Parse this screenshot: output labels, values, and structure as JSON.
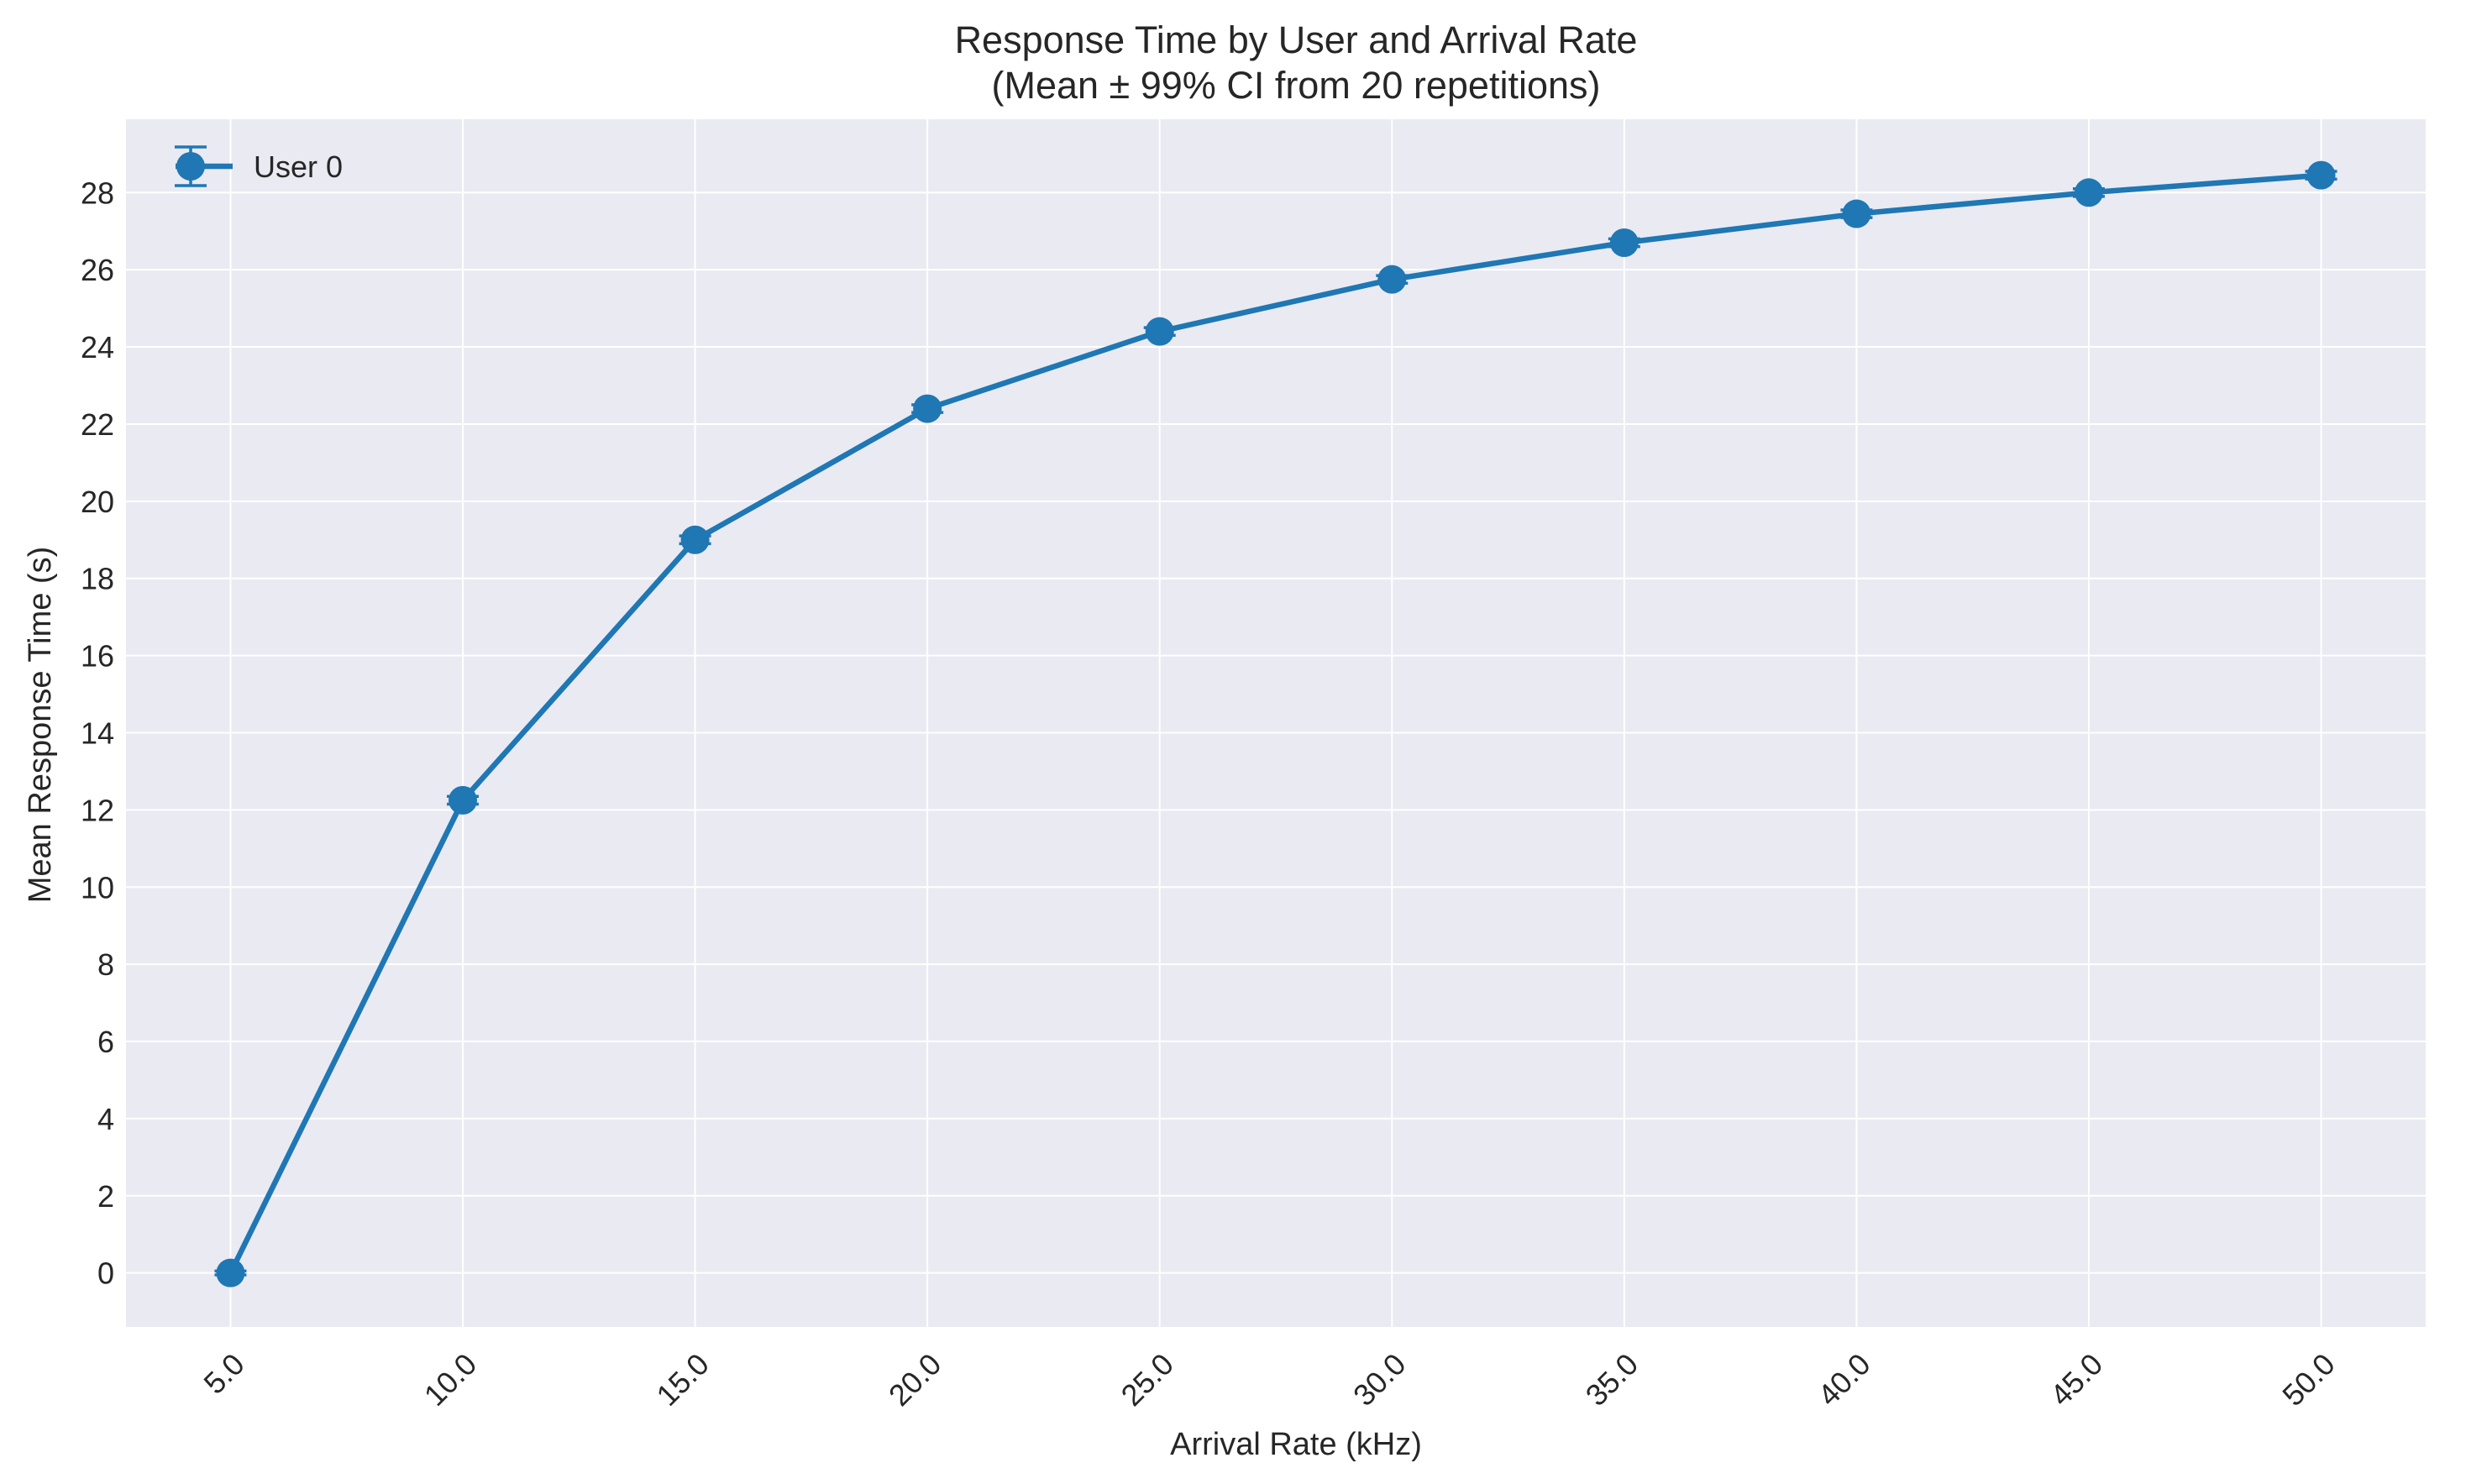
{
  "chart_data": {
    "type": "line",
    "title": "Response Time by User and Arrival Rate",
    "subtitle": "(Mean ± 99% CI from 20 repetitions)",
    "xlabel": "Arrival Rate (kHz)",
    "ylabel": "Mean Response Time (s)",
    "x": [
      5.0,
      10.0,
      15.0,
      20.0,
      25.0,
      30.0,
      35.0,
      40.0,
      45.0,
      50.0
    ],
    "x_tick_labels": [
      "5.0",
      "10.0",
      "15.0",
      "20.0",
      "25.0",
      "30.0",
      "35.0",
      "40.0",
      "45.0",
      "50.0"
    ],
    "xlim": [
      2.75,
      52.25
    ],
    "y_ticks": [
      0,
      2,
      4,
      6,
      8,
      10,
      12,
      14,
      16,
      18,
      20,
      22,
      24,
      26,
      28
    ],
    "ylim": [
      -1.4,
      29.9
    ],
    "series": [
      {
        "name": "User 0",
        "color": "#1f77b4",
        "values": [
          0.0,
          12.25,
          19.0,
          22.4,
          24.4,
          25.75,
          26.7,
          27.45,
          28.0,
          28.45
        ],
        "error": [
          0.05,
          0.1,
          0.1,
          0.1,
          0.1,
          0.1,
          0.1,
          0.1,
          0.1,
          0.1
        ]
      }
    ],
    "grid": true,
    "legend_position": "top-left",
    "background_color": "#eaeaf2",
    "grid_color": "#ffffff"
  }
}
